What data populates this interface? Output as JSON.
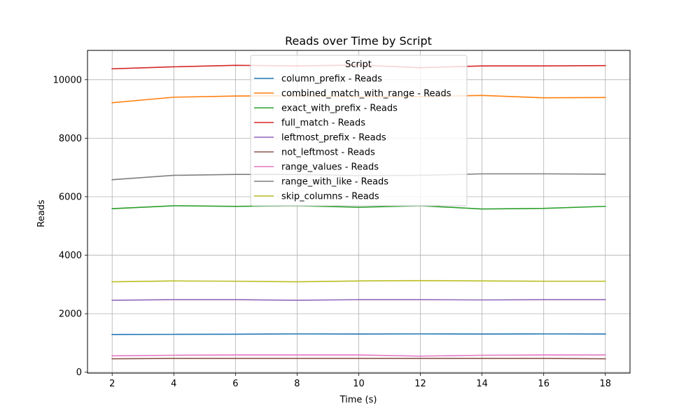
{
  "chart_data": {
    "type": "line",
    "title": "Reads over Time by Script",
    "xlabel": "Time (s)",
    "ylabel": "Reads",
    "xlim": [
      1.2,
      18.8
    ],
    "ylim": [
      -30,
      11000
    ],
    "xticks": [
      2,
      4,
      6,
      8,
      10,
      12,
      14,
      16,
      18
    ],
    "yticks": [
      0,
      2000,
      4000,
      6000,
      8000,
      10000
    ],
    "grid": true,
    "legend_title": "Script",
    "legend_position": "top-center",
    "x": [
      2,
      4,
      6,
      8,
      10,
      12,
      14,
      16,
      18
    ],
    "series": [
      {
        "name": "column_prefix - Reads",
        "color": "#1f77b4",
        "values": [
          1290,
          1295,
          1300,
          1310,
          1305,
          1310,
          1305,
          1310,
          1305
        ]
      },
      {
        "name": "combined_match_with_range - Reads",
        "color": "#ff7f0e",
        "values": [
          9210,
          9400,
          9440,
          9450,
          9420,
          9420,
          9460,
          9380,
          9390
        ]
      },
      {
        "name": "exact_with_prefix - Reads",
        "color": "#2ca02c",
        "values": [
          5590,
          5690,
          5670,
          5690,
          5640,
          5690,
          5580,
          5600,
          5670
        ]
      },
      {
        "name": "full_match - Reads",
        "color": "#d62728",
        "values": [
          10370,
          10440,
          10490,
          10470,
          10500,
          10410,
          10470,
          10470,
          10480
        ]
      },
      {
        "name": "leftmost_prefix - Reads",
        "color": "#9467bd",
        "values": [
          2460,
          2480,
          2480,
          2460,
          2480,
          2480,
          2470,
          2480,
          2480
        ]
      },
      {
        "name": "not_leftmost - Reads",
        "color": "#8c564b",
        "values": [
          460,
          470,
          470,
          470,
          470,
          470,
          470,
          470,
          460
        ]
      },
      {
        "name": "range_values - Reads",
        "color": "#e377c2",
        "values": [
          560,
          580,
          590,
          590,
          590,
          550,
          580,
          590,
          590
        ]
      },
      {
        "name": "range_with_like - Reads",
        "color": "#7f7f7f",
        "values": [
          6580,
          6730,
          6760,
          6760,
          6720,
          6730,
          6780,
          6780,
          6770
        ]
      },
      {
        "name": "skip_columns - Reads",
        "color": "#bcbd22",
        "values": [
          3090,
          3120,
          3110,
          3090,
          3120,
          3130,
          3120,
          3110,
          3110
        ]
      }
    ]
  }
}
